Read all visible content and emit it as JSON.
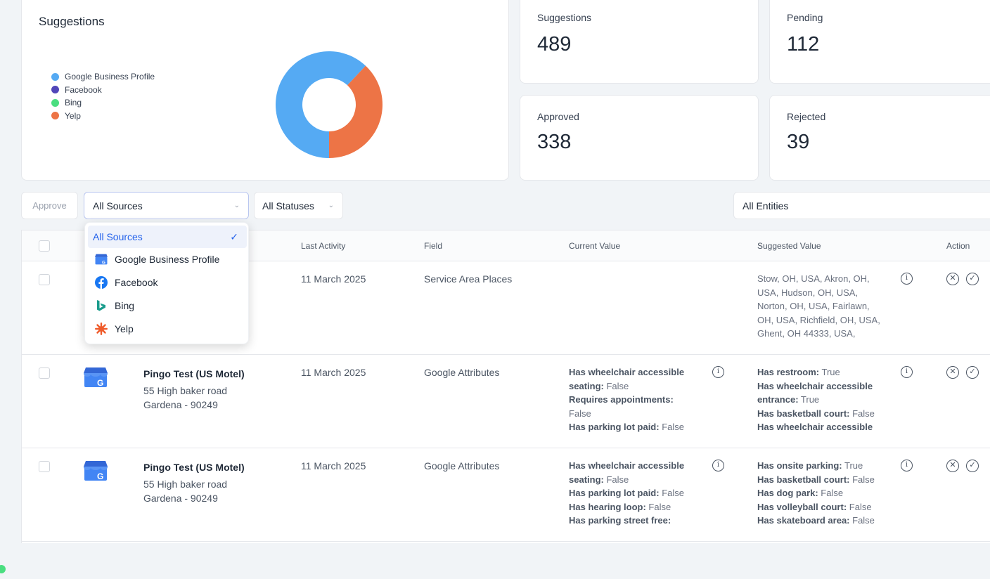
{
  "chart_card": {
    "title": "Suggestions",
    "legend": [
      {
        "label": "Google Business Profile",
        "color": "#55aaf3"
      },
      {
        "label": "Facebook",
        "color": "#5146b9"
      },
      {
        "label": "Bing",
        "color": "#4ade80"
      },
      {
        "label": "Yelp",
        "color": "#ed7446"
      }
    ]
  },
  "chart_data": {
    "type": "pie",
    "categories": [
      "Google Business Profile",
      "Facebook",
      "Bing",
      "Yelp"
    ],
    "values": [
      62,
      0,
      0,
      38
    ],
    "colors": [
      "#55aaf3",
      "#5146b9",
      "#4ade80",
      "#ed7446"
    ]
  },
  "stats": {
    "suggestions": {
      "label": "Suggestions",
      "value": "489"
    },
    "pending": {
      "label": "Pending",
      "value": "112"
    },
    "approved": {
      "label": "Approved",
      "value": "338"
    },
    "rejected": {
      "label": "Rejected",
      "value": "39"
    }
  },
  "filters": {
    "approve_label": "Approve",
    "sources_value": "All Sources",
    "statuses_value": "All Statuses",
    "entities_value": "All Entities"
  },
  "dropdown": {
    "items": [
      {
        "label": "All Sources",
        "icon": "none"
      },
      {
        "label": "Google Business Profile",
        "icon": "google-business-profile-icon"
      },
      {
        "label": "Facebook",
        "icon": "facebook-icon"
      },
      {
        "label": "Bing",
        "icon": "bing-icon"
      },
      {
        "label": "Yelp",
        "icon": "yelp-icon"
      }
    ]
  },
  "table": {
    "headers": {
      "last_activity": "Last Activity",
      "field": "Field",
      "current_value": "Current Value",
      "suggested_value": "Suggested Value",
      "action": "Action"
    },
    "rows": [
      {
        "date": "11 March 2025",
        "field": "Service Area Places",
        "suggested_lines": [
          "Stow, OH, USA, Akron, OH,",
          "USA, Hudson, OH, USA,",
          "Norton, OH, USA, Fairlawn,",
          "OH, USA, Richfield, OH, USA,",
          "Ghent, OH 44333, USA,"
        ]
      },
      {
        "entity_name": "Pingo Test (US Motel)",
        "address_line1": "55 High baker road",
        "address_line2": "Gardena - 90249",
        "date": "11 March 2025",
        "field": "Google Attributes",
        "current": {
          "k1": "Has wheelchair accessible",
          "k1b": "seating:",
          "v1": " False",
          "k2": "Requires appointments:",
          "v2": "False",
          "k3": "Has parking lot paid:",
          "v3": " False"
        },
        "suggested": {
          "k1": "Has restroom:",
          "v1": " True",
          "k2": "Has wheelchair accessible",
          "k2b": "entrance:",
          "v2": " True",
          "k3": "Has basketball court:",
          "v3": " False",
          "k4": "Has wheelchair accessible"
        }
      },
      {
        "entity_name": "Pingo Test (US Motel)",
        "address_line1": "55 High baker road",
        "address_line2": "Gardena - 90249",
        "date": "11 March 2025",
        "field": "Google Attributes",
        "current": {
          "k1": "Has wheelchair accessible",
          "k1b": "seating:",
          "v1": " False",
          "k2": "Has parking lot paid:",
          "v2": " False",
          "k3": "Has hearing loop:",
          "v3": " False",
          "k4": "Has parking street free:"
        },
        "suggested": {
          "k1": "Has onsite parking:",
          "v1": " True",
          "k2": "Has basketball court:",
          "v2": " False",
          "k3": "Has dog park:",
          "v3": " False",
          "k4": "Has volleyball court:",
          "v4": " False",
          "k5": "Has skateboard area:",
          "v5": " False"
        }
      }
    ]
  }
}
